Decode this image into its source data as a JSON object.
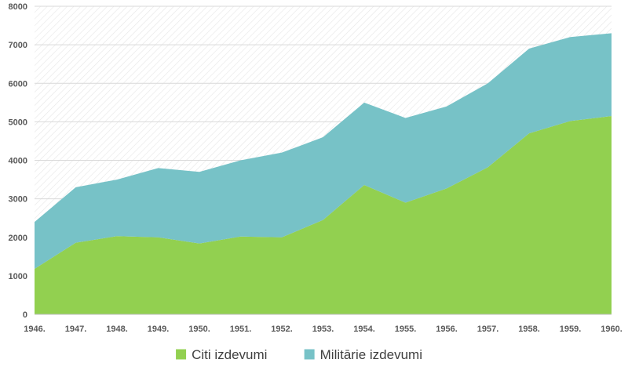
{
  "chart_data": {
    "type": "area",
    "stacked": true,
    "categories": [
      "1946.",
      "1947.",
      "1948.",
      "1949.",
      "1950.",
      "1951.",
      "1952.",
      "1953.",
      "1954.",
      "1955.",
      "1956.",
      "1957.",
      "1958.",
      "1959.",
      "1960."
    ],
    "series": [
      {
        "name": "Citi izdevumi",
        "color": "#92d050",
        "values": [
          1180,
          1860,
          2030,
          2000,
          1840,
          2020,
          2000,
          2450,
          3360,
          2900,
          3270,
          3820,
          4700,
          5020,
          5150
        ]
      },
      {
        "name": "Militārie izdevumi",
        "color": "#77c2c7",
        "values": [
          1220,
          1440,
          1470,
          1800,
          1860,
          1980,
          2200,
          2150,
          2140,
          2200,
          2130,
          2180,
          2200,
          2180,
          2150
        ]
      }
    ],
    "ylim": [
      0,
      8000
    ],
    "yticks": [
      "0",
      "1000",
      "2000",
      "3000",
      "4000",
      "5000",
      "6000",
      "7000",
      "8000"
    ],
    "grid": "horizontal",
    "legend_position": "bottom",
    "title": "",
    "xlabel": "",
    "ylabel": ""
  }
}
